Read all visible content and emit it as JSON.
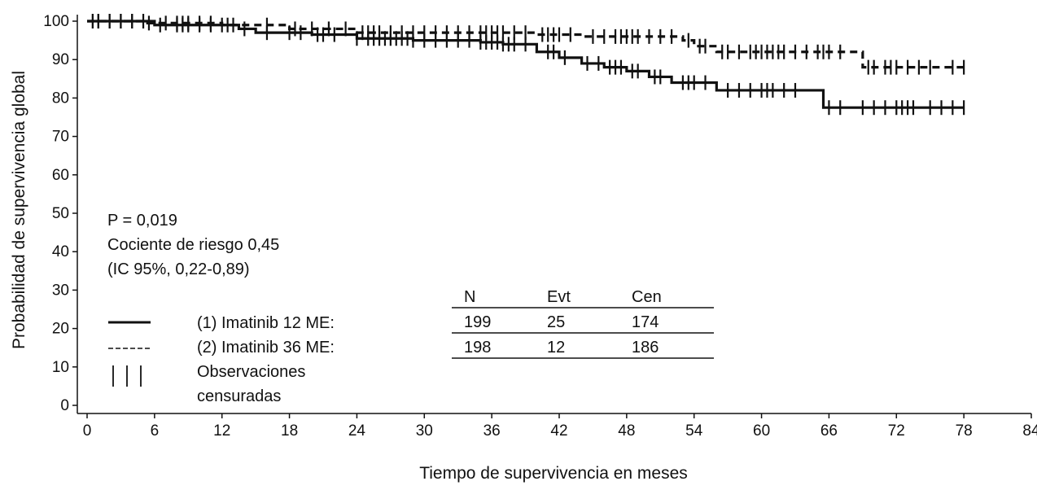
{
  "chart_data": {
    "type": "line",
    "title": "",
    "xlabel": "Tiempo de supervivencia en meses",
    "ylabel": "Probabilidad de supervivencia global",
    "xlim": [
      0,
      84
    ],
    "ylim": [
      0,
      100
    ],
    "x_ticks": [
      "0",
      "6",
      "12",
      "18",
      "24",
      "30",
      "36",
      "42",
      "48",
      "54",
      "60",
      "66",
      "72",
      "78",
      "84"
    ],
    "y_ticks": [
      "0",
      "10",
      "20",
      "30",
      "40",
      "50",
      "60",
      "70",
      "80",
      "90",
      "100"
    ],
    "grid": false,
    "annotations": [
      "P = 0,019",
      "Cociente de riesgo 0,45",
      "(IC 95%, 0,22-0,89)"
    ],
    "legend": {
      "placement": "bottom-left",
      "entries": [
        {
          "symbol": "solid",
          "label": "(1) Imatinib 12 ME:"
        },
        {
          "symbol": "dashed",
          "label": "(2) Imatinib 36 ME:"
        },
        {
          "symbol": "censor",
          "label_lines": [
            "Observaciones",
            "censuradas"
          ]
        }
      ]
    },
    "table": {
      "headers": [
        "N",
        "Evt",
        "Cen"
      ],
      "rows": [
        [
          "199",
          "25",
          "174"
        ],
        [
          "198",
          "12",
          "186"
        ]
      ]
    },
    "series": [
      {
        "name": "(1) Imatinib 12 ME",
        "style": "solid",
        "x": [
          0,
          6,
          12,
          13.5,
          15,
          20,
          24,
          29,
          35,
          37,
          40,
          42,
          44,
          46,
          48,
          50,
          52,
          56,
          65,
          65.5,
          78
        ],
        "y": [
          100,
          99,
          99,
          98,
          97,
          96.5,
          95.5,
          95,
          94.5,
          94,
          92,
          90.5,
          89,
          88,
          87,
          85.5,
          84,
          82,
          82,
          77.5,
          77.5
        ],
        "censored_x": [
          0.5,
          1,
          2,
          3,
          4,
          5,
          6.5,
          8,
          8.5,
          9,
          10,
          11,
          12.5,
          14,
          16,
          18,
          19,
          20.5,
          21,
          22,
          24,
          25,
          25.5,
          26,
          26.5,
          27,
          27.5,
          28,
          28.5,
          29,
          30,
          31,
          32,
          33,
          34,
          35,
          35.5,
          36,
          36.5,
          37,
          37.5,
          38,
          39,
          41,
          41.5,
          42.5,
          44.5,
          45.5,
          46.5,
          47,
          47.5,
          48.5,
          49,
          50.5,
          51,
          53,
          53.5,
          54,
          55,
          57,
          58,
          59,
          60,
          60.5,
          61,
          62,
          63,
          66,
          67,
          69,
          70,
          71,
          72,
          72.5,
          73,
          73.5,
          75,
          76,
          77,
          78
        ]
      },
      {
        "name": "(2) Imatinib 36 ME",
        "style": "dashed",
        "x": [
          0,
          5,
          12,
          18,
          24,
          40,
          44,
          53,
          54,
          56,
          68,
          69,
          78
        ],
        "y": [
          100,
          99.5,
          99,
          98,
          97,
          96.5,
          96,
          95,
          93.5,
          92,
          92,
          88,
          88
        ],
        "censored_x": [
          0.5,
          1,
          2,
          3,
          4,
          5.5,
          7,
          8,
          8.5,
          9,
          10,
          11,
          12,
          13,
          16,
          18.5,
          20,
          21.5,
          23,
          24.5,
          25,
          25.5,
          26,
          27,
          28,
          29,
          30,
          31,
          32,
          33,
          34,
          35,
          35.5,
          36,
          36.5,
          37,
          38,
          39,
          40.5,
          41,
          41.5,
          42,
          43,
          45,
          46,
          47,
          47.5,
          48,
          48.5,
          49,
          50,
          51,
          52,
          53.5,
          54.5,
          55,
          56.5,
          57,
          58,
          59,
          59.5,
          60,
          60.5,
          61,
          61.5,
          62,
          63,
          64,
          65,
          65.5,
          66,
          67,
          69.5,
          70,
          71,
          71.5,
          72,
          73,
          74,
          75,
          77,
          78
        ]
      }
    ]
  }
}
